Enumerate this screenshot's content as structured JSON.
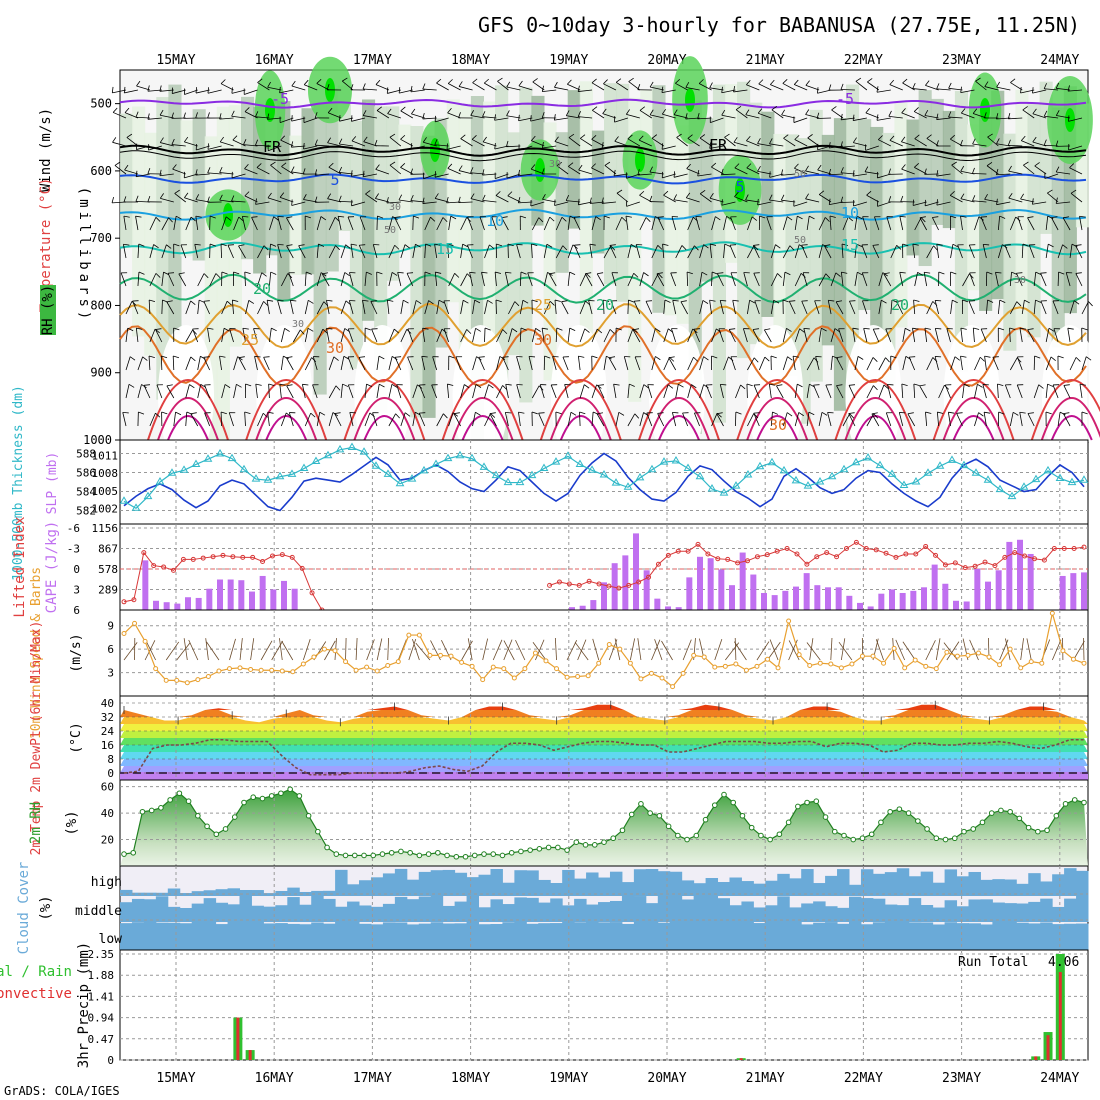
{
  "title": "GFS 0~10day 3-hourly for BABANUSA (27.75E, 11.25N)",
  "credit": "GrADS: COLA/IGES",
  "dates": [
    "15MAY",
    "16MAY",
    "17MAY",
    "18MAY",
    "19MAY",
    "20MAY",
    "21MAY",
    "22MAY",
    "23MAY",
    "24MAY"
  ],
  "panel_labels": {
    "upper": {
      "wind": "Wind (m/s)",
      "temperature": "Temperature (°C)",
      "rh": "RH (%)",
      "unit": "(millibars)"
    },
    "thickness": {
      "left": "1000-500mb Thickness (dm)",
      "right": "SLP (mb)"
    },
    "cape": {
      "left": "Lifted Index",
      "right": "CAPE (J/kg)"
    },
    "wind10": {
      "name": "10m Wind Speed & Barbs",
      "unit": "(m/s)"
    },
    "temp2m": {
      "name": "2m Temp 2m DewPt (6hr Min/Max)",
      "unit": "(°C)"
    },
    "rh2m": {
      "name": "2m RH",
      "unit": "(%)"
    },
    "cloud": {
      "name": "Cloud Cover",
      "unit": "(%)",
      "levels": [
        "high",
        "middle",
        "low"
      ]
    },
    "precip": {
      "name": "3hr Precip (mm)",
      "legend_total": "tal / Rain",
      "legend_conv": "Convective",
      "run_total_label": "Run Total",
      "run_total_value": "4.06"
    }
  },
  "colors": {
    "thickness": "#30b8c8",
    "slp": "#1a3ccc",
    "lifted_index": "#d83838",
    "cape": "#c070f0",
    "wind10": "#e8a030",
    "rh2m": "#30a030",
    "cloud": "#6aaad8",
    "precip_total": "#30c030",
    "precip_conv": "#e03030"
  },
  "chart_data": [
    {
      "type": "heatmap",
      "panel": "upper-air cross-section",
      "y_axis": {
        "label": "(millibars)",
        "ticks": [
          500,
          600,
          700,
          800,
          900,
          1000
        ],
        "range": [
          450,
          1000
        ]
      },
      "temperature_contours": [
        "-5",
        "FR",
        "5",
        "10",
        "15",
        "20",
        "25",
        "30"
      ],
      "rh_contours": [
        "30",
        "50"
      ]
    },
    {
      "type": "line",
      "panel": "thickness-slp",
      "y_left": {
        "ticks": [
          "588",
          "586",
          "584",
          "582"
        ],
        "range": [
          581,
          589
        ]
      },
      "y_right": {
        "ticks": [
          "1011",
          "1008",
          "1005",
          "1002"
        ],
        "range": [
          1000,
          1013
        ]
      },
      "thickness": [
        582.5,
        583.5,
        584.3,
        584.8,
        584.2,
        583.1,
        582.3,
        583.0,
        584.6,
        585.2,
        584.8,
        583.6,
        582.4,
        582.0,
        583.4,
        585.1,
        585.4,
        585.2,
        585.0,
        585.8,
        586.7,
        587.6,
        586.8,
        585.2,
        585.4,
        586.2,
        586.8,
        586.1,
        585.0,
        584.3,
        584.0,
        585.2,
        586.6,
        586.2,
        585.0,
        583.8,
        583.0,
        583.8,
        585.7,
        587.0,
        588.0,
        587.2,
        585.5,
        584.2,
        583.2,
        583.0,
        583.9,
        585.6,
        586.7,
        586.3,
        585.1,
        584.0,
        583.3,
        582.4,
        583.2,
        585.6,
        586.4,
        585.5,
        584.4,
        583.8,
        584.2,
        585.4,
        586.2,
        586.0,
        584.8,
        583.8,
        583.0,
        582.4,
        583.4,
        585.4,
        586.8,
        587.4,
        586.6,
        585.2,
        584.6,
        584.0,
        584.2,
        585.6,
        586.8,
        586.0,
        584.5
      ],
      "slp": [
        1003.2,
        1002.0,
        1004.0,
        1006.5,
        1008.0,
        1008.5,
        1009.5,
        1010.4,
        1011.3,
        1010.5,
        1008.6,
        1007.0,
        1006.8,
        1007.4,
        1007.8,
        1008.8,
        1010.0,
        1011.0,
        1012.0,
        1012.4,
        1011.6,
        1009.2,
        1007.8,
        1006.2,
        1007.0,
        1008.4,
        1009.5,
        1010.5,
        1011.0,
        1010.5,
        1009.0,
        1007.6,
        1006.4,
        1006.4,
        1007.6,
        1008.8,
        1009.9,
        1010.9,
        1009.5,
        1008.5,
        1007.7,
        1006.3,
        1005.6,
        1007.2,
        1008.6,
        1009.9,
        1010.1,
        1008.8,
        1007.4,
        1005.3,
        1004.6,
        1005.8,
        1007.7,
        1009.1,
        1009.8,
        1008.4,
        1006.7,
        1005.8,
        1006.5,
        1007.4,
        1008.6,
        1009.8,
        1010.6,
        1009.3,
        1007.8,
        1005.9,
        1006.5,
        1008.0,
        1009.2,
        1010.2,
        1009.3,
        1008.0,
        1006.8,
        1005.2,
        1004.0,
        1005.6,
        1006.9,
        1008.4,
        1007.1,
        1006.4,
        1006.8
      ],
      "timeline": "15MAY-24MAY 3-hourly"
    },
    {
      "type": "bar",
      "panel": "lifted-index-cape",
      "y_left": {
        "ticks": [
          "-6",
          "-3",
          "0",
          "3",
          "6"
        ],
        "range": [
          -6,
          6
        ]
      },
      "y_right": {
        "ticks": [
          "1156",
          "867",
          "578",
          "289"
        ],
        "range": [
          0,
          1156
        ]
      },
      "cape": [
        0,
        0,
        700,
        130,
        110,
        90,
        180,
        170,
        300,
        430,
        430,
        420,
        260,
        480,
        290,
        410,
        300,
        0,
        0,
        0,
        0,
        0,
        0,
        0,
        0,
        0,
        0,
        0,
        0,
        0,
        0,
        0,
        0,
        0,
        0,
        0,
        0,
        0,
        0,
        0,
        0,
        0,
        40,
        60,
        140,
        390,
        660,
        770,
        1080,
        560,
        160,
        50,
        40,
        460,
        750,
        730,
        570,
        350,
        810,
        500,
        240,
        210,
        270,
        330,
        520,
        350,
        320,
        320,
        200,
        100,
        50,
        230,
        290,
        240,
        270,
        320,
        640,
        370,
        130,
        120,
        580,
        400,
        560,
        960,
        990,
        790,
        0,
        0,
        480,
        520,
        530
      ],
      "lifted_index": [
        4.8,
        4.5,
        -2.4,
        -0.5,
        -0.3,
        0.2,
        -1.4,
        -1.4,
        -1.6,
        -1.8,
        -2.0,
        -1.8,
        -1.7,
        -1.7,
        -1.1,
        -1.9,
        -2.1,
        -1.7,
        -0.1,
        3.5,
        6.1,
        null,
        null,
        null,
        null,
        null,
        null,
        null,
        null,
        null,
        null,
        null,
        null,
        null,
        null,
        null,
        null,
        null,
        null,
        null,
        null,
        null,
        null,
        2.4,
        1.9,
        2.2,
        2.4,
        1.8,
        2.2,
        2.5,
        2.8,
        2.4,
        1.9,
        1.2,
        -0.7,
        -2.0,
        -2.6,
        -2.6,
        -3.6,
        -2.2,
        -1.5,
        -1.4,
        -0.9,
        -1.2,
        -1.8,
        -2.1,
        -2.6,
        -3.0,
        -2.2,
        -0.7,
        -1.8,
        -2.4,
        -1.8,
        -3.0,
        -3.9,
        -3.0,
        -2.8,
        -2.3,
        -1.7,
        -2.2,
        -2.2,
        -3.3,
        -2.0,
        -0.6,
        -0.9,
        -0.2,
        -0.4,
        -1.0,
        -0.5,
        -1.7,
        -2.4,
        -1.9,
        -1.5,
        -1.3,
        -3.0,
        -3.0,
        -3.0,
        -3.2
      ]
    },
    {
      "type": "line",
      "panel": "10m-wind",
      "y_axis": {
        "ticks": [
          "9",
          "6",
          "3"
        ],
        "range": [
          0,
          10.5
        ]
      },
      "speed": [
        8.0,
        9.3,
        7.0,
        3.5,
        2.0,
        2.0,
        1.7,
        2.1,
        2.5,
        3.2,
        3.5,
        3.6,
        3.4,
        3.3,
        3.3,
        3.2,
        3.1,
        4.1,
        5.0,
        6.0,
        5.8,
        4.4,
        3.3,
        3.7,
        3.2,
        3.9,
        4.4,
        7.8,
        7.8,
        5.2,
        5.2,
        5.1,
        4.3,
        3.8,
        2.1,
        3.7,
        3.5,
        2.3,
        3.5,
        5.5,
        4.5,
        3.5,
        2.4,
        2.5,
        2.6,
        4.2,
        6.6,
        6.0,
        4.2,
        2.2,
        2.9,
        2.3,
        1.2,
        2.9,
        5.2,
        5.0,
        3.7,
        3.8,
        4.1,
        3.3,
        3.8,
        4.7,
        3.6,
        9.6,
        5.3,
        3.9,
        4.2,
        4.1,
        3.6,
        4.1,
        5.1,
        5.1,
        4.2,
        6.1,
        3.6,
        4.6,
        3.8,
        3.5,
        5.6,
        5.1,
        5.2,
        5.5,
        5.0,
        4.0,
        6.0,
        3.6,
        4.4,
        4.2,
        10.6,
        5.8,
        4.7,
        4.2
      ]
    },
    {
      "type": "area",
      "panel": "2m-temp-dewpoint",
      "y_axis": {
        "ticks": [
          "40",
          "32",
          "24",
          "16",
          "8",
          "0"
        ],
        "range": [
          -4,
          44
        ]
      },
      "temperature": [
        36,
        34,
        32,
        30,
        30,
        33,
        36,
        37,
        33,
        30,
        29,
        31,
        34,
        36,
        33,
        30,
        29,
        31,
        35,
        37,
        38,
        36,
        33,
        31,
        30,
        32,
        36,
        38,
        38,
        36,
        33,
        31,
        30,
        33,
        37,
        39,
        39,
        36,
        32,
        31,
        30,
        33,
        37,
        39,
        38,
        36,
        33,
        31,
        30,
        32,
        36,
        38,
        38,
        35,
        32,
        30,
        30,
        33,
        37,
        39,
        39,
        36,
        33,
        31,
        30,
        33,
        36,
        38,
        38,
        35,
        32,
        30
      ],
      "dewpoint": [
        0,
        1,
        14,
        16,
        16,
        17,
        19,
        19,
        18,
        18,
        18,
        10,
        3,
        -1,
        -1,
        -1,
        0,
        0,
        0,
        0,
        1,
        3,
        4,
        2,
        1,
        4,
        12,
        17,
        17,
        16,
        13,
        15,
        17,
        18,
        18,
        17,
        16,
        16,
        12,
        12,
        14,
        16,
        18,
        18,
        18,
        17,
        17,
        18,
        18,
        15,
        17,
        17,
        16,
        12,
        13,
        17,
        17,
        16,
        16,
        17,
        17,
        18,
        17,
        15,
        14,
        16,
        19,
        19
      ]
    },
    {
      "type": "area",
      "panel": "2m-rh",
      "y_axis": {
        "ticks": [
          "60",
          "40",
          "20"
        ],
        "range": [
          0,
          62
        ]
      },
      "rh": [
        9,
        10,
        41,
        42,
        44,
        50,
        55,
        49,
        38,
        30,
        24,
        28,
        37,
        48,
        52,
        51,
        53,
        55,
        58,
        53,
        38,
        26,
        14,
        9,
        8,
        8,
        8,
        8,
        9,
        10,
        11,
        10,
        8,
        9,
        10,
        8,
        7,
        7,
        8,
        9,
        9,
        8,
        10,
        11,
        12,
        13,
        14,
        14,
        12,
        18,
        16,
        16,
        18,
        21,
        27,
        39,
        47,
        40,
        38,
        30,
        23,
        20,
        23,
        35,
        46,
        54,
        48,
        38,
        29,
        23,
        20,
        24,
        33,
        45,
        48,
        49,
        37,
        26,
        23,
        20,
        21,
        24,
        33,
        41,
        43,
        40,
        34,
        28,
        21,
        20,
        21,
        26,
        28,
        33,
        40,
        42,
        41,
        36,
        29,
        26,
        27,
        38,
        47,
        50,
        48
      ]
    },
    {
      "type": "heatmap",
      "panel": "cloud-cover",
      "rows": [
        "high",
        "middle",
        "low"
      ],
      "note": "3-hourly coverage blocks"
    },
    {
      "type": "bar",
      "panel": "3hr-precip",
      "y_axis": {
        "ticks": [
          "2.35",
          "1.88",
          "1.41",
          "0.94",
          "0.47",
          "0"
        ],
        "range": [
          0,
          2.35
        ]
      },
      "events": [
        {
          "date": "15MAY",
          "offset_h": 15,
          "total": 0.94,
          "conv": 0.94
        },
        {
          "date": "15MAY",
          "offset_h": 18,
          "total": 0.22,
          "conv": 0.22
        },
        {
          "date": "20MAY",
          "offset_h": 18,
          "total": 0.04,
          "conv": 0.04
        },
        {
          "date": "23MAY",
          "offset_h": 18,
          "total": 0.08,
          "conv": 0.08
        },
        {
          "date": "23MAY",
          "offset_h": 21,
          "total": 0.62,
          "conv": 0.55
        },
        {
          "date": "23MAY",
          "offset_h": 24,
          "total": 2.35,
          "conv": 1.95
        }
      ],
      "run_total": 4.06
    }
  ]
}
